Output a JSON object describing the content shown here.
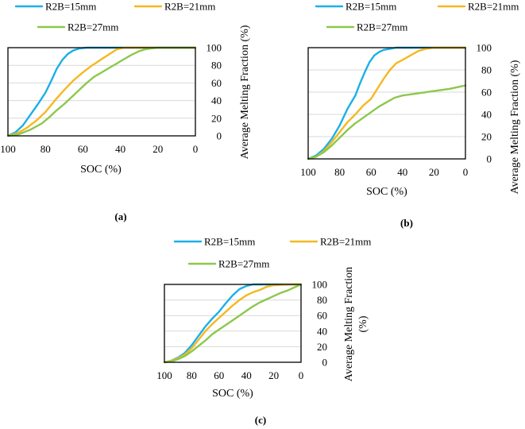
{
  "colors": {
    "s1": "#1bb0e8",
    "s2": "#f5b820",
    "s3": "#8cc84b"
  },
  "chart_data": [
    {
      "type": "line",
      "caption": "(a)",
      "xlabel": "SOC (%)",
      "ylabel": "Average Melting Fraction (%)",
      "xlim": [
        100,
        0
      ],
      "ylim": [
        0,
        100
      ],
      "xticks": [
        100,
        80,
        60,
        40,
        20,
        0
      ],
      "yticks": [
        0,
        20,
        40,
        60,
        80,
        100
      ],
      "legend": [
        "R2B=15mm",
        "R2B=21mm",
        "R2B=27mm"
      ],
      "series": [
        {
          "name": "R2B=15mm",
          "x": [
            100,
            96,
            92,
            88,
            84,
            80,
            77,
            74,
            71,
            68,
            65,
            62,
            58,
            50,
            40,
            20,
            0
          ],
          "y": [
            0,
            4,
            12,
            24,
            36,
            49,
            62,
            76,
            86,
            93,
            97,
            99,
            100,
            100,
            100,
            100,
            100
          ]
        },
        {
          "name": "R2B=21mm",
          "x": [
            100,
            95,
            90,
            85,
            80,
            75,
            70,
            65,
            60,
            55,
            50,
            45,
            42,
            38,
            30,
            20,
            0
          ],
          "y": [
            0,
            3,
            9,
            17,
            27,
            40,
            52,
            63,
            72,
            80,
            87,
            94,
            98,
            100,
            100,
            100,
            100
          ]
        },
        {
          "name": "R2B=27mm",
          "x": [
            100,
            94,
            88,
            82,
            78,
            74,
            70,
            66,
            62,
            58,
            54,
            50,
            46,
            42,
            38,
            34,
            30,
            27,
            24,
            20,
            10,
            0
          ],
          "y": [
            0,
            2,
            7,
            14,
            21,
            29,
            36,
            44,
            52,
            60,
            67,
            72,
            77,
            82,
            87,
            92,
            96,
            98,
            99,
            100,
            100,
            100
          ]
        }
      ]
    },
    {
      "type": "line",
      "caption": "(b)",
      "xlabel": "SOC (%)",
      "ylabel": "Average Melting Fraction (%)",
      "xlim": [
        100,
        0
      ],
      "ylim": [
        0,
        100
      ],
      "xticks": [
        100,
        80,
        60,
        40,
        20,
        0
      ],
      "yticks": [
        0,
        20,
        40,
        60,
        80,
        100
      ],
      "legend": [
        "R2B=15mm",
        "R2B=21mm",
        "R2B=27mm"
      ],
      "series": [
        {
          "name": "R2B=15mm",
          "x": [
            100,
            95,
            90,
            85,
            80,
            75,
            70,
            67,
            64,
            61,
            58,
            55,
            52,
            48,
            44,
            40,
            30,
            20,
            0
          ],
          "y": [
            0,
            3,
            9,
            18,
            30,
            45,
            57,
            68,
            78,
            87,
            93,
            96,
            98,
            99,
            100,
            100,
            100,
            100,
            100
          ]
        },
        {
          "name": "R2B=21mm",
          "x": [
            100,
            95,
            90,
            85,
            80,
            75,
            70,
            65,
            60,
            56,
            52,
            48,
            44,
            40,
            35,
            30,
            25,
            20,
            10,
            0
          ],
          "y": [
            0,
            2,
            7,
            15,
            24,
            33,
            40,
            48,
            54,
            63,
            72,
            80,
            86,
            89,
            93,
            97,
            99,
            100,
            100,
            100
          ]
        },
        {
          "name": "R2B=27mm",
          "x": [
            100,
            95,
            90,
            85,
            80,
            75,
            70,
            65,
            60,
            55,
            50,
            45,
            40,
            35,
            30,
            20,
            10,
            0
          ],
          "y": [
            0,
            2,
            6,
            12,
            19,
            26,
            32,
            37,
            42,
            47,
            51,
            55,
            57,
            58,
            59,
            61,
            63,
            66
          ]
        }
      ]
    },
    {
      "type": "line",
      "caption": "(c)",
      "xlabel": "SOC (%)",
      "ylabel": "Average Melting Fraction (%)",
      "xlim": [
        100,
        0
      ],
      "ylim": [
        0,
        100
      ],
      "xticks": [
        100,
        80,
        60,
        40,
        20,
        0
      ],
      "yticks": [
        0,
        20,
        40,
        60,
        80,
        100
      ],
      "legend": [
        "R2B=15mm",
        "R2B=21mm",
        "R2B=27mm"
      ],
      "series": [
        {
          "name": "R2B=15mm",
          "x": [
            100,
            95,
            90,
            85,
            80,
            75,
            70,
            65,
            60,
            55,
            50,
            45,
            40,
            35,
            30,
            20,
            0
          ],
          "y": [
            0,
            2,
            6,
            12,
            22,
            34,
            46,
            56,
            65,
            76,
            86,
            94,
            98,
            100,
            100,
            100,
            100
          ]
        },
        {
          "name": "R2B=21mm",
          "x": [
            100,
            95,
            90,
            85,
            80,
            75,
            70,
            65,
            60,
            55,
            50,
            45,
            40,
            35,
            30,
            25,
            20,
            10,
            0
          ],
          "y": [
            0,
            2,
            5,
            10,
            18,
            29,
            40,
            49,
            57,
            65,
            73,
            80,
            86,
            90,
            93,
            97,
            99,
            100,
            100
          ]
        },
        {
          "name": "R2B=27mm",
          "x": [
            100,
            95,
            90,
            85,
            80,
            75,
            70,
            65,
            60,
            55,
            50,
            45,
            40,
            35,
            30,
            25,
            20,
            15,
            10,
            5,
            0
          ],
          "y": [
            0,
            1,
            4,
            8,
            14,
            21,
            28,
            36,
            42,
            48,
            54,
            60,
            66,
            72,
            77,
            81,
            85,
            89,
            92,
            96,
            100
          ]
        }
      ]
    }
  ]
}
